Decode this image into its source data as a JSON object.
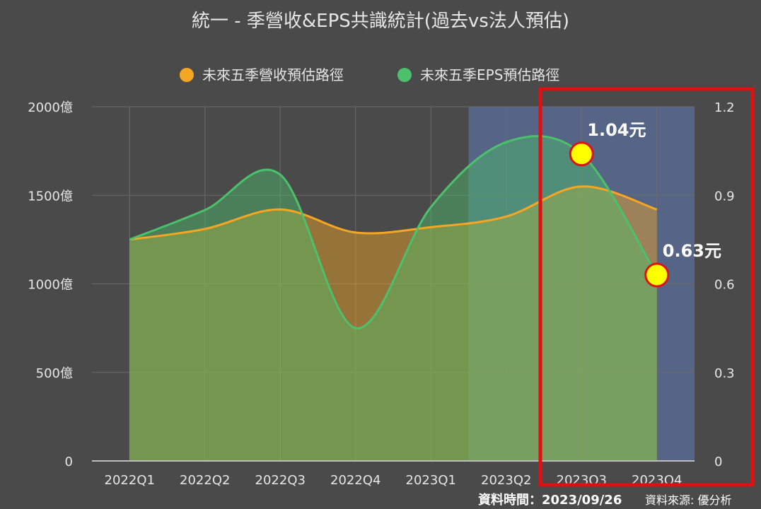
{
  "chart_data": {
    "type": "area",
    "title": "統一 - 季營收&EPS共識統計(過去vs法人預估)",
    "categories": [
      "2022Q1",
      "2022Q2",
      "2022Q3",
      "2022Q4",
      "2023Q1",
      "2023Q2",
      "2023Q3",
      "2023Q4"
    ],
    "series": [
      {
        "name": "未來五季營收預估路徑",
        "axis": "left",
        "unit": "億",
        "color": "#f5a623",
        "values": [
          1250,
          1310,
          1420,
          1290,
          1320,
          1380,
          1550,
          1420
        ]
      },
      {
        "name": "未來五季EPS預估路徑",
        "axis": "right",
        "color": "#4cc06c",
        "values": [
          0.75,
          0.85,
          0.97,
          0.45,
          0.86,
          1.08,
          1.04,
          0.63
        ]
      }
    ],
    "y_left": {
      "range": [
        0,
        2000
      ],
      "ticks": [
        "0",
        "500億",
        "1000億",
        "1500億",
        "2000億"
      ]
    },
    "y_right": {
      "range": [
        0,
        1.2
      ],
      "ticks": [
        "0",
        "0.3",
        "0.6",
        "0.9",
        "1.2"
      ]
    },
    "forecast_region": {
      "from": "2023Q2",
      "to": "2023Q4",
      "color": "#5b6e9a"
    },
    "annotations": [
      {
        "category": "2023Q3",
        "series": 1,
        "label": "1.04元"
      },
      {
        "category": "2023Q4",
        "series": 1,
        "label": "0.63元"
      }
    ],
    "legend_position": "top-center",
    "grid": true
  },
  "footer": {
    "date_label": "資料時間：2023/09/26",
    "source_label": "資料來源: 優分析"
  },
  "colors": {
    "background": "#4a4a4a",
    "revenue": "#f5a623",
    "eps": "#4cc06c",
    "highlight_box": "#e01010",
    "marker_fill": "#ffff00",
    "marker_stroke": "#e01010"
  }
}
